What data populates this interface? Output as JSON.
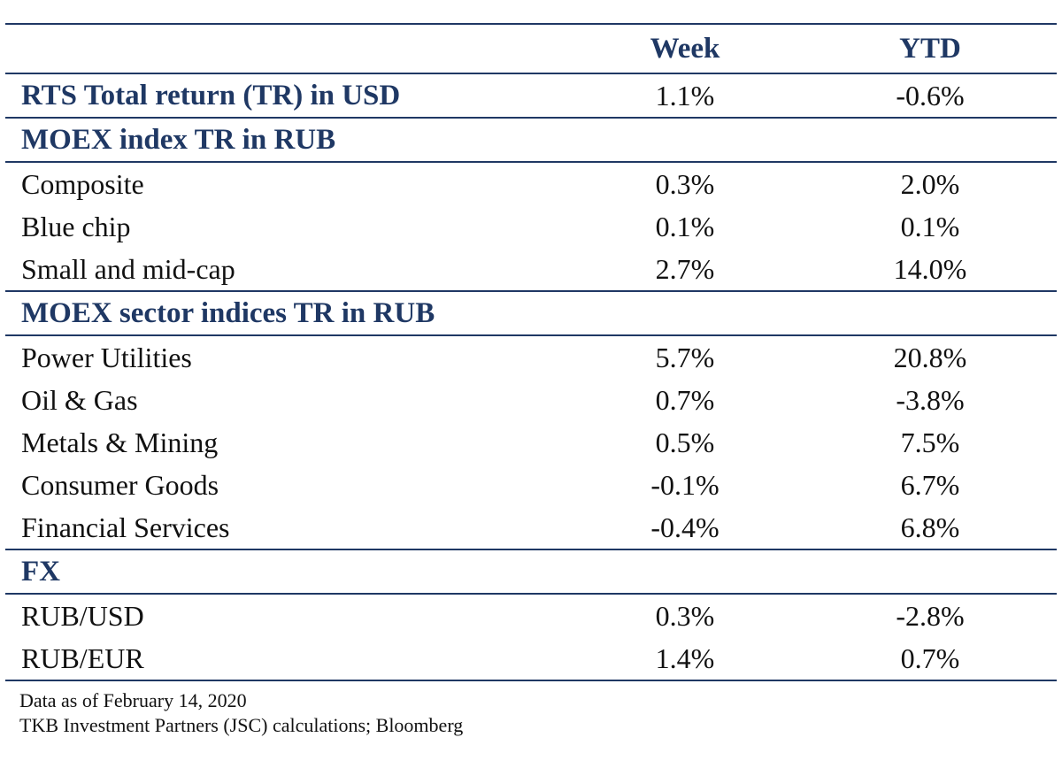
{
  "header": {
    "week": "Week",
    "ytd": "YTD"
  },
  "rows": [
    {
      "label": "RTS Total return (TR) in USD",
      "week": "1.1%",
      "ytd": "-0.6%",
      "kind": "section"
    },
    {
      "label": "MOEX index TR in RUB",
      "week": "",
      "ytd": "",
      "kind": "section"
    },
    {
      "label": "Composite",
      "week": "0.3%",
      "ytd": "2.0%",
      "kind": "item"
    },
    {
      "label": "Blue chip",
      "week": "0.1%",
      "ytd": "0.1%",
      "kind": "item"
    },
    {
      "label": "Small and mid-cap",
      "week": "2.7%",
      "ytd": "14.0%",
      "kind": "item"
    },
    {
      "label": "MOEX sector indices TR in RUB",
      "week": "",
      "ytd": "",
      "kind": "section"
    },
    {
      "label": "Power Utilities",
      "week": "5.7%",
      "ytd": "20.8%",
      "kind": "item"
    },
    {
      "label": "Oil & Gas",
      "week": "0.7%",
      "ytd": "-3.8%",
      "kind": "item"
    },
    {
      "label": "Metals & Mining",
      "week": "0.5%",
      "ytd": "7.5%",
      "kind": "item"
    },
    {
      "label": "Consumer Goods",
      "week": "-0.1%",
      "ytd": "6.7%",
      "kind": "item"
    },
    {
      "label": "Financial Services",
      "week": "-0.4%",
      "ytd": "6.8%",
      "kind": "item"
    },
    {
      "label": "FX",
      "week": "",
      "ytd": "",
      "kind": "section"
    },
    {
      "label": "RUB/USD",
      "week": "0.3%",
      "ytd": "-2.8%",
      "kind": "item"
    },
    {
      "label": "RUB/EUR",
      "week": "1.4%",
      "ytd": "0.7%",
      "kind": "item"
    }
  ],
  "footer": {
    "date_note": "Data as of February 14, 2020",
    "source_note": "TKB Investment Partners (JSC) calculations; Bloomberg"
  },
  "colors": {
    "accent": "#1f3864",
    "text": "#111111"
  }
}
